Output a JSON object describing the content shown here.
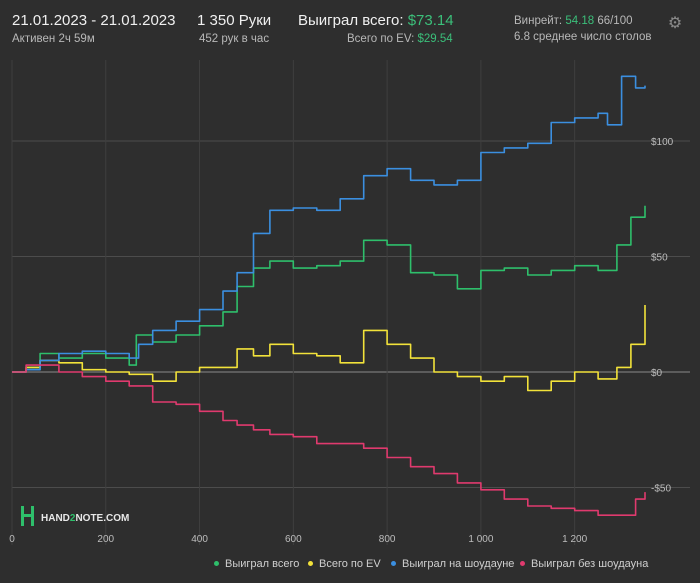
{
  "header": {
    "date_range": "21.01.2023 - 21.01.2023",
    "active": "Активен 2ч 59м",
    "hands": "1 350 Руки",
    "hands_per_hour": "452 рук в час",
    "won_total_label": "Выиграл всего:",
    "won_total_value": "$73.14",
    "ev_total_label": "Всего по EV:",
    "ev_total_value": "$29.54",
    "winrate_label": "Винрейт:",
    "winrate_value": "54.18",
    "winrate_rest": "66/100",
    "avg_tables": "6.8 среднее число столов",
    "settings_icon": "gear-icon"
  },
  "logo": {
    "text_a": "HAND",
    "text_b": "2",
    "text_c": "NOTE.COM"
  },
  "colors": {
    "won": "#2ebf6b",
    "ev": "#f2e23a",
    "showdown": "#3b8fe0",
    "nonshowdown": "#e03a6e"
  },
  "chart_data": {
    "type": "line",
    "xlim": [
      0,
      1350
    ],
    "ylim": [
      -58,
      133
    ],
    "x_ticks": [
      {
        "v": 0,
        "label": "0"
      },
      {
        "v": 200,
        "label": "200"
      },
      {
        "v": 400,
        "label": "400"
      },
      {
        "v": 600,
        "label": "600"
      },
      {
        "v": 800,
        "label": "800"
      },
      {
        "v": 1000,
        "label": "1 000"
      },
      {
        "v": 1200,
        "label": "1 200"
      }
    ],
    "y_ticks": [
      {
        "v": 100,
        "label": "$100"
      },
      {
        "v": 50,
        "label": "$50"
      },
      {
        "v": 0,
        "label": "$0"
      },
      {
        "v": -50,
        "label": "-$50"
      }
    ],
    "series": [
      {
        "name": "Выиграл всего",
        "color": "#2ebf6b",
        "x": [
          0,
          30,
          60,
          100,
          150,
          200,
          250,
          265,
          300,
          350,
          400,
          450,
          480,
          515,
          550,
          600,
          650,
          700,
          750,
          800,
          850,
          900,
          950,
          1000,
          1050,
          1100,
          1150,
          1200,
          1250,
          1290,
          1320,
          1350
        ],
        "y": [
          0,
          2,
          8,
          6,
          8,
          6,
          3,
          16,
          13,
          16,
          20,
          26,
          37,
          45,
          48,
          45,
          46,
          48,
          57,
          55,
          43,
          42,
          36,
          44,
          45,
          42,
          44,
          46,
          44,
          55,
          67,
          72
        ]
      },
      {
        "name": "Всего по EV",
        "color": "#f2e23a",
        "x": [
          0,
          30,
          60,
          100,
          150,
          200,
          250,
          300,
          350,
          400,
          450,
          480,
          515,
          550,
          600,
          650,
          700,
          750,
          800,
          850,
          900,
          950,
          1000,
          1050,
          1100,
          1150,
          1200,
          1250,
          1290,
          1320,
          1350
        ],
        "y": [
          0,
          2,
          5,
          4,
          1,
          0,
          -1,
          -4,
          0,
          2,
          2,
          10,
          7,
          12,
          8,
          7,
          4,
          18,
          12,
          6,
          0,
          -2,
          -4,
          -2,
          -8,
          -4,
          0,
          -3,
          2,
          12,
          29
        ]
      },
      {
        "name": "Выиграл на шоудауне",
        "color": "#3b8fe0",
        "x": [
          0,
          30,
          60,
          100,
          150,
          200,
          250,
          270,
          300,
          350,
          400,
          450,
          480,
          515,
          550,
          600,
          650,
          700,
          750,
          800,
          850,
          900,
          950,
          1000,
          1050,
          1100,
          1150,
          1200,
          1250,
          1270,
          1300,
          1330,
          1350
        ],
        "y": [
          0,
          1,
          5,
          8,
          9,
          8,
          6,
          12,
          18,
          22,
          27,
          35,
          43,
          60,
          70,
          71,
          70,
          75,
          85,
          88,
          83,
          81,
          83,
          95,
          97,
          99,
          108,
          110,
          112,
          107,
          128,
          123,
          124
        ]
      },
      {
        "name": "Выиграл без шоудауна",
        "color": "#e03a6e",
        "x": [
          0,
          30,
          60,
          100,
          150,
          200,
          250,
          300,
          350,
          400,
          450,
          480,
          515,
          550,
          600,
          650,
          700,
          750,
          800,
          850,
          900,
          950,
          1000,
          1050,
          1100,
          1150,
          1200,
          1250,
          1300,
          1330,
          1350
        ],
        "y": [
          0,
          3,
          3,
          0,
          -2,
          -4,
          -6,
          -13,
          -14,
          -17,
          -21,
          -23,
          -25,
          -27,
          -28,
          -31,
          -31,
          -33,
          -37,
          -41,
          -44,
          -48,
          -51,
          -55,
          -58,
          -59,
          -60,
          -62,
          -62,
          -55,
          -52
        ]
      }
    ]
  }
}
